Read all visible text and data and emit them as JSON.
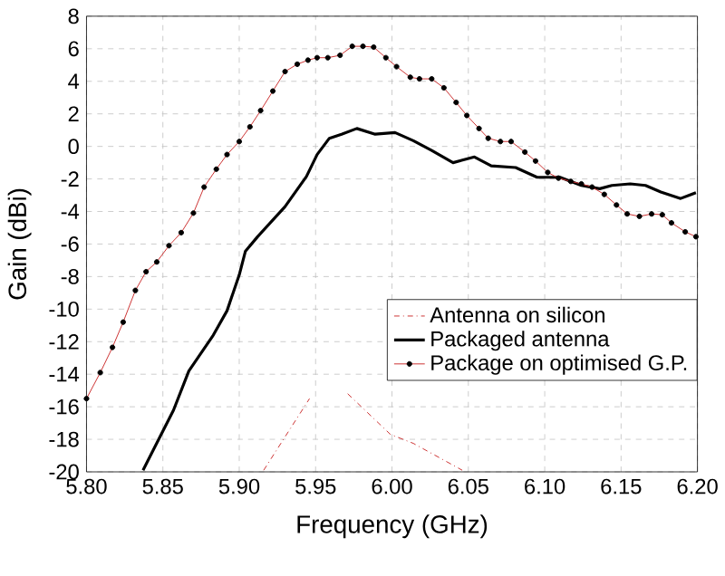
{
  "chart_data": {
    "type": "line",
    "xlabel": "Frequency (GHz)",
    "ylabel": "Gain (dBi)",
    "xlim": [
      5.8,
      6.2
    ],
    "ylim": [
      -20,
      8
    ],
    "xticks": [
      {
        "value": 5.8,
        "label": "5.80"
      },
      {
        "value": 5.85,
        "label": "5.85"
      },
      {
        "value": 5.9,
        "label": "5.90"
      },
      {
        "value": 5.95,
        "label": "5.95"
      },
      {
        "value": 6.0,
        "label": "6.00"
      },
      {
        "value": 6.05,
        "label": "6.05"
      },
      {
        "value": 6.1,
        "label": "6.10"
      },
      {
        "value": 6.15,
        "label": "6.15"
      },
      {
        "value": 6.2,
        "label": "6.20"
      }
    ],
    "yticks": [
      -20,
      -18,
      -16,
      -14,
      -12,
      -10,
      -8,
      -6,
      -4,
      -2,
      0,
      2,
      4,
      6,
      8
    ],
    "grid": true,
    "legend": "right",
    "series": [
      {
        "name": "Antenna on silicon",
        "color": "#cc3333",
        "line_style": "dashdot",
        "marker": "none",
        "x": [
          5.916,
          5.946,
          5.958,
          5.971,
          5.999,
          6.014,
          6.046
        ],
        "values": [
          -19.9,
          -15.5,
          null,
          -15.2,
          -17.7,
          -18.25,
          -19.9
        ]
      },
      {
        "name": "Packaged antenna",
        "color": "#000000",
        "line_style": "solid",
        "marker": "none",
        "x": [
          5.837,
          5.857,
          5.867,
          5.883,
          5.892,
          5.9,
          5.904,
          5.912,
          5.93,
          5.944,
          5.951,
          5.959,
          5.967,
          5.977,
          5.989,
          6.002,
          6.014,
          6.026,
          6.04,
          6.054,
          6.065,
          6.081,
          6.095,
          6.11,
          6.124,
          6.136,
          6.144,
          6.156,
          6.166,
          6.176,
          6.189,
          6.199
        ],
        "values": [
          -19.9,
          -16.2,
          -13.8,
          -11.6,
          -10.1,
          -7.9,
          -6.45,
          -5.55,
          -3.7,
          -1.85,
          -0.5,
          0.5,
          0.75,
          1.1,
          0.75,
          0.85,
          0.35,
          -0.25,
          -1.0,
          -0.65,
          -1.2,
          -1.3,
          -1.9,
          -1.9,
          -2.4,
          -2.6,
          -2.4,
          -2.3,
          -2.4,
          -2.8,
          -3.2,
          -2.85
        ]
      },
      {
        "name": "Package on optimised G.P.",
        "color": "#cc3333",
        "line_style": "solid",
        "marker": "circle",
        "x": [
          5.8,
          5.809,
          5.817,
          5.824,
          5.832,
          5.839,
          5.846,
          5.854,
          5.862,
          5.87,
          5.877,
          5.885,
          5.892,
          5.9,
          5.907,
          5.914,
          5.922,
          5.93,
          5.938,
          5.945,
          5.951,
          5.958,
          5.966,
          5.974,
          5.981,
          5.988,
          5.996,
          6.003,
          6.012,
          6.018,
          6.026,
          6.034,
          6.042,
          6.049,
          6.057,
          6.063,
          6.071,
          6.078,
          6.087,
          6.094,
          6.102,
          6.109,
          6.117,
          6.124,
          6.131,
          6.139,
          6.147,
          6.154,
          6.162,
          6.17,
          6.177,
          6.183,
          6.192,
          6.199
        ],
        "values": [
          -15.5,
          -13.9,
          -12.35,
          -10.8,
          -8.85,
          -7.7,
          -7.1,
          -6.1,
          -5.3,
          -4.1,
          -2.5,
          -1.4,
          -0.5,
          0.3,
          1.2,
          2.2,
          3.4,
          4.6,
          5.05,
          5.3,
          5.45,
          5.45,
          5.6,
          6.15,
          6.15,
          6.1,
          5.45,
          4.9,
          4.25,
          4.15,
          4.15,
          3.6,
          2.7,
          1.9,
          1.1,
          0.5,
          0.3,
          0.3,
          -0.35,
          -0.9,
          -1.6,
          -1.95,
          -2.15,
          -2.3,
          -2.5,
          -2.95,
          -3.6,
          -4.15,
          -4.3,
          -4.15,
          -4.2,
          -4.7,
          -5.25,
          -5.55
        ]
      }
    ]
  }
}
